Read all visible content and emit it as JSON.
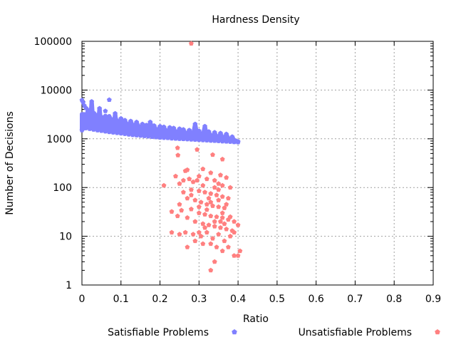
{
  "chart_data": {
    "type": "scatter",
    "title": "Hardness Density",
    "xlabel": "Ratio",
    "ylabel": "Number of Decisions",
    "xlim": [
      0,
      0.9
    ],
    "ylim": [
      1,
      100000
    ],
    "yscale": "log",
    "grid": true,
    "legend_position": "bottom",
    "x_ticks": [
      "0",
      "0.1",
      "0.2",
      "0.3",
      "0.4",
      "0.5",
      "0.6",
      "0.7",
      "0.8",
      "0.9"
    ],
    "y_ticks": [
      "1",
      "10",
      "100",
      "1000",
      "10000",
      "100000"
    ],
    "series": [
      {
        "name": "Satisfiable Problems",
        "color": "#8080ff",
        "points": [
          [
            0.0,
            6200
          ],
          [
            0.003,
            5600
          ],
          [
            0.006,
            4800
          ],
          [
            0.01,
            4300
          ],
          [
            0.015,
            3900
          ],
          [
            0.02,
            3600
          ],
          [
            0.025,
            5800
          ],
          [
            0.03,
            3400
          ],
          [
            0.035,
            3100
          ],
          [
            0.04,
            3000
          ],
          [
            0.045,
            4200
          ],
          [
            0.05,
            2800
          ],
          [
            0.055,
            2600
          ],
          [
            0.06,
            3700
          ],
          [
            0.065,
            2500
          ],
          [
            0.07,
            6300
          ],
          [
            0.075,
            2400
          ],
          [
            0.08,
            2300
          ],
          [
            0.085,
            3300
          ],
          [
            0.09,
            2200
          ],
          [
            0.095,
            2100
          ],
          [
            0.1,
            2600
          ],
          [
            0.105,
            2000
          ],
          [
            0.11,
            2400
          ],
          [
            0.115,
            1900
          ],
          [
            0.12,
            1850
          ],
          [
            0.125,
            2300
          ],
          [
            0.13,
            1800
          ],
          [
            0.135,
            1750
          ],
          [
            0.14,
            2200
          ],
          [
            0.145,
            1700
          ],
          [
            0.15,
            1650
          ],
          [
            0.155,
            2000
          ],
          [
            0.16,
            1600
          ],
          [
            0.165,
            1900
          ],
          [
            0.17,
            1550
          ],
          [
            0.175,
            2200
          ],
          [
            0.18,
            1500
          ],
          [
            0.185,
            1850
          ],
          [
            0.19,
            1480
          ],
          [
            0.195,
            1450
          ],
          [
            0.2,
            1800
          ],
          [
            0.205,
            1430
          ],
          [
            0.21,
            1750
          ],
          [
            0.215,
            1400
          ],
          [
            0.22,
            1380
          ],
          [
            0.225,
            1700
          ],
          [
            0.23,
            1350
          ],
          [
            0.235,
            1650
          ],
          [
            0.24,
            1330
          ],
          [
            0.245,
            1300
          ],
          [
            0.25,
            1600
          ],
          [
            0.255,
            1280
          ],
          [
            0.26,
            1550
          ],
          [
            0.265,
            1260
          ],
          [
            0.27,
            1240
          ],
          [
            0.275,
            1500
          ],
          [
            0.28,
            1220
          ],
          [
            0.285,
            1200
          ],
          [
            0.29,
            2000
          ],
          [
            0.295,
            1180
          ],
          [
            0.3,
            1450
          ],
          [
            0.305,
            1160
          ],
          [
            0.31,
            1140
          ],
          [
            0.315,
            1800
          ],
          [
            0.32,
            1120
          ],
          [
            0.325,
            1400
          ],
          [
            0.33,
            1100
          ],
          [
            0.335,
            1080
          ],
          [
            0.34,
            1350
          ],
          [
            0.345,
            1060
          ],
          [
            0.35,
            1040
          ],
          [
            0.355,
            1300
          ],
          [
            0.36,
            1020
          ],
          [
            0.365,
            1000
          ],
          [
            0.37,
            1250
          ],
          [
            0.375,
            980
          ],
          [
            0.38,
            960
          ],
          [
            0.385,
            1100
          ],
          [
            0.39,
            930
          ],
          [
            0.395,
            900
          ],
          [
            0.4,
            880
          ],
          [
            0.0,
            1500
          ],
          [
            0.005,
            1700
          ],
          [
            0.01,
            1650
          ],
          [
            0.02,
            1600
          ],
          [
            0.03,
            1550
          ],
          [
            0.04,
            1500
          ],
          [
            0.05,
            1460
          ],
          [
            0.06,
            1420
          ],
          [
            0.07,
            1380
          ],
          [
            0.08,
            1350
          ],
          [
            0.09,
            1320
          ],
          [
            0.1,
            1290
          ],
          [
            0.11,
            1260
          ],
          [
            0.12,
            1230
          ],
          [
            0.13,
            1200
          ],
          [
            0.14,
            1180
          ],
          [
            0.15,
            1160
          ],
          [
            0.16,
            1140
          ],
          [
            0.17,
            1120
          ],
          [
            0.18,
            1100
          ],
          [
            0.19,
            1080
          ],
          [
            0.2,
            1060
          ],
          [
            0.21,
            1050
          ],
          [
            0.22,
            1040
          ],
          [
            0.23,
            1020
          ],
          [
            0.24,
            1010
          ],
          [
            0.25,
            1000
          ],
          [
            0.26,
            990
          ],
          [
            0.27,
            980
          ],
          [
            0.28,
            970
          ],
          [
            0.29,
            960
          ],
          [
            0.3,
            950
          ],
          [
            0.31,
            940
          ],
          [
            0.32,
            930
          ],
          [
            0.33,
            920
          ],
          [
            0.34,
            910
          ],
          [
            0.35,
            900
          ],
          [
            0.36,
            890
          ],
          [
            0.37,
            880
          ],
          [
            0.38,
            870
          ],
          [
            0.39,
            860
          ],
          [
            0.4,
            850
          ]
        ]
      },
      {
        "name": "Unsatisfiable Problems",
        "color": "#ff8080",
        "points": [
          [
            0.28,
            90000
          ],
          [
            0.245,
            650
          ],
          [
            0.246,
            460
          ],
          [
            0.295,
            600
          ],
          [
            0.335,
            470
          ],
          [
            0.36,
            380
          ],
          [
            0.24,
            170
          ],
          [
            0.265,
            220
          ],
          [
            0.27,
            230
          ],
          [
            0.31,
            240
          ],
          [
            0.33,
            200
          ],
          [
            0.355,
            180
          ],
          [
            0.37,
            160
          ],
          [
            0.21,
            110
          ],
          [
            0.25,
            120
          ],
          [
            0.26,
            140
          ],
          [
            0.275,
            150
          ],
          [
            0.285,
            130
          ],
          [
            0.3,
            170
          ],
          [
            0.32,
            150
          ],
          [
            0.34,
            140
          ],
          [
            0.35,
            120
          ],
          [
            0.36,
            110
          ],
          [
            0.38,
            100
          ],
          [
            0.28,
            90
          ],
          [
            0.3,
            85
          ],
          [
            0.315,
            80
          ],
          [
            0.33,
            75
          ],
          [
            0.345,
            70
          ],
          [
            0.36,
            65
          ],
          [
            0.375,
            60
          ],
          [
            0.27,
            60
          ],
          [
            0.29,
            55
          ],
          [
            0.305,
            50
          ],
          [
            0.32,
            45
          ],
          [
            0.335,
            42
          ],
          [
            0.35,
            40
          ],
          [
            0.365,
            38
          ],
          [
            0.23,
            32
          ],
          [
            0.255,
            34
          ],
          [
            0.28,
            36
          ],
          [
            0.3,
            30
          ],
          [
            0.315,
            28
          ],
          [
            0.33,
            26
          ],
          [
            0.345,
            25
          ],
          [
            0.36,
            24
          ],
          [
            0.375,
            22
          ],
          [
            0.39,
            20
          ],
          [
            0.245,
            26
          ],
          [
            0.27,
            24
          ],
          [
            0.29,
            20
          ],
          [
            0.31,
            18
          ],
          [
            0.325,
            17
          ],
          [
            0.34,
            16
          ],
          [
            0.355,
            15
          ],
          [
            0.37,
            14
          ],
          [
            0.385,
            13
          ],
          [
            0.4,
            17
          ],
          [
            0.23,
            12
          ],
          [
            0.265,
            12
          ],
          [
            0.285,
            11
          ],
          [
            0.305,
            10
          ],
          [
            0.32,
            12
          ],
          [
            0.335,
            9
          ],
          [
            0.35,
            11
          ],
          [
            0.365,
            8
          ],
          [
            0.38,
            10
          ],
          [
            0.39,
            12
          ],
          [
            0.25,
            11
          ],
          [
            0.29,
            8
          ],
          [
            0.31,
            7
          ],
          [
            0.33,
            7
          ],
          [
            0.345,
            6
          ],
          [
            0.36,
            5
          ],
          [
            0.375,
            6
          ],
          [
            0.39,
            4
          ],
          [
            0.405,
            5
          ],
          [
            0.27,
            6
          ],
          [
            0.34,
            3
          ],
          [
            0.33,
            2
          ],
          [
            0.4,
            4
          ],
          [
            0.3,
            12
          ],
          [
            0.315,
            15
          ],
          [
            0.34,
            20
          ],
          [
            0.36,
            30
          ],
          [
            0.38,
            25
          ],
          [
            0.325,
            60
          ],
          [
            0.34,
            100
          ],
          [
            0.35,
            90
          ],
          [
            0.31,
            110
          ],
          [
            0.295,
            140
          ],
          [
            0.32,
            35
          ],
          [
            0.33,
            50
          ],
          [
            0.35,
            55
          ],
          [
            0.37,
            45
          ],
          [
            0.3,
            40
          ],
          [
            0.28,
            70
          ],
          [
            0.26,
            80
          ],
          [
            0.25,
            45
          ],
          [
            0.355,
            20
          ],
          [
            0.365,
            18
          ]
        ]
      }
    ]
  }
}
